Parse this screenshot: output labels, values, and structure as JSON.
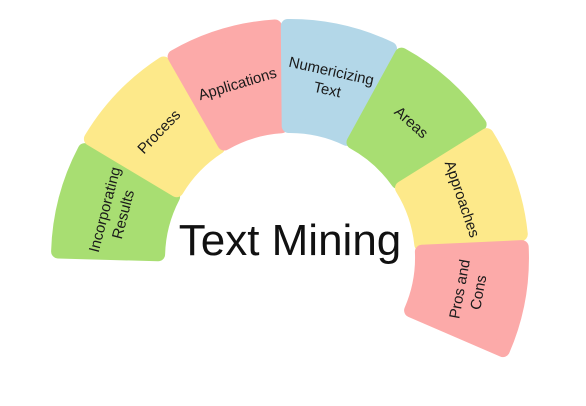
{
  "title": "Text Mining",
  "segments": [
    {
      "label_lines": [
        "Incorporating",
        "Results"
      ],
      "color": "#a8de72"
    },
    {
      "label_lines": [
        "Process"
      ],
      "color": "#fde98a"
    },
    {
      "label_lines": [
        "Applications"
      ],
      "color": "#fcaaa9"
    },
    {
      "label_lines": [
        "Numericizing",
        "Text"
      ],
      "color": "#b3d7e8"
    },
    {
      "label_lines": [
        "Areas"
      ],
      "color": "#a8de72"
    },
    {
      "label_lines": [
        "Approaches"
      ],
      "color": "#fde98a"
    },
    {
      "label_lines": [
        "Pros and",
        "Cons"
      ],
      "color": "#fcaaa9"
    }
  ]
}
